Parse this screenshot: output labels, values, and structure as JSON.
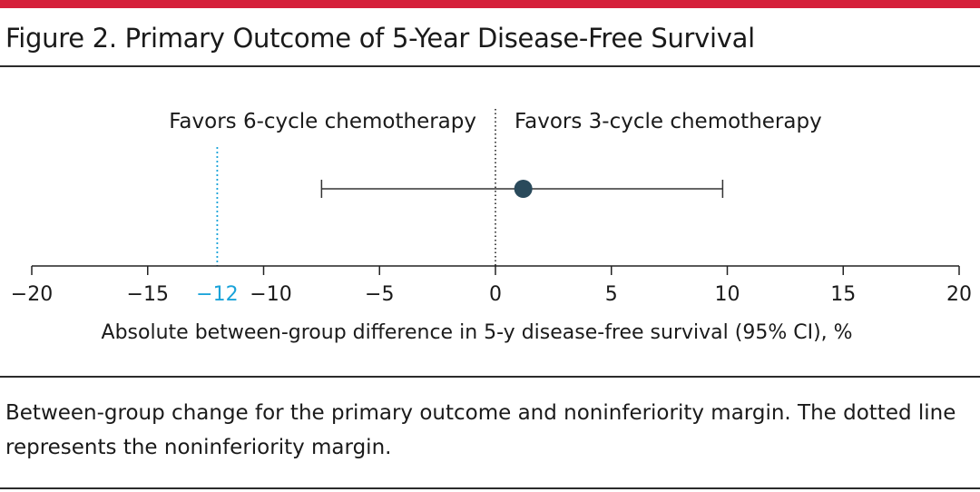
{
  "figure": {
    "title": "Figure 2. Primary Outcome of 5-Year Disease-Free Survival",
    "caption": "Between-group change for the primary outcome and noninferiority margin. The dotted line represents the noninferiority margin."
  },
  "colors": {
    "accent_bar": "#d5203b",
    "point": "#2a4a5b",
    "margin_line": "#1aa3d9",
    "text": "#1a1a1a"
  },
  "chart_data": {
    "type": "scatter",
    "subtype": "forest-plot",
    "xlabel": "Absolute between-group difference in 5-y disease-free survival (95% CI), %",
    "xlim": [
      -20,
      20
    ],
    "xticks": [
      -20,
      -15,
      -10,
      -5,
      0,
      5,
      10,
      15,
      20
    ],
    "xtick_labels": [
      "−20",
      "−15",
      "−10",
      "−5",
      "0",
      "5",
      "10",
      "15",
      "20"
    ],
    "favors_left": "Favors 6-cycle chemotherapy",
    "favors_right": "Favors 3-cycle chemotherapy",
    "reference_line": {
      "x": 0,
      "style": "dotted"
    },
    "noninferiority_margin": {
      "x": -12,
      "label": "−12",
      "style": "dotted"
    },
    "estimate": {
      "point": 1.2,
      "ci_low": -7.5,
      "ci_high": 9.8
    },
    "grid": false
  }
}
